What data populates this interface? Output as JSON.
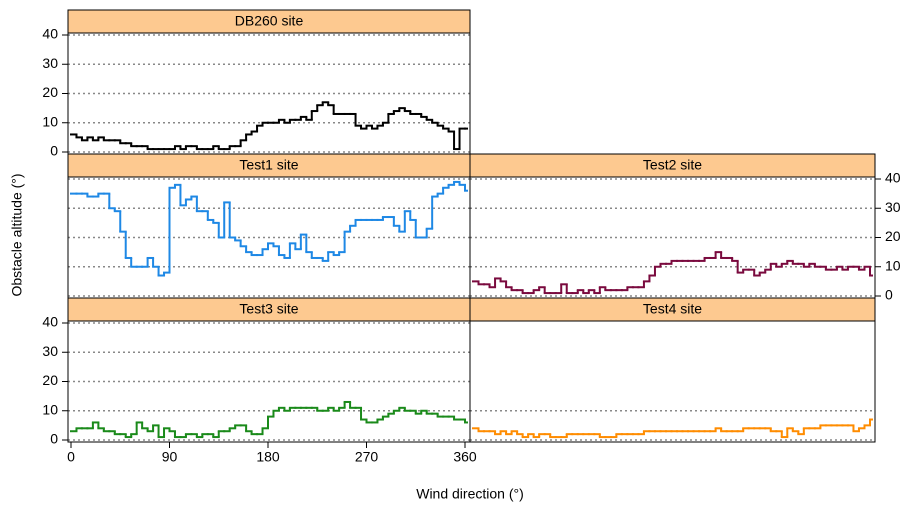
{
  "chart_data": [
    {
      "type": "line",
      "title": "DB260 site",
      "color": "#000000",
      "drawstyle": "steps-post",
      "x": [
        0,
        5,
        10,
        15,
        20,
        25,
        30,
        35,
        40,
        45,
        50,
        55,
        60,
        65,
        70,
        75,
        80,
        85,
        90,
        95,
        100,
        105,
        110,
        115,
        120,
        125,
        130,
        135,
        140,
        145,
        150,
        155,
        160,
        165,
        170,
        175,
        180,
        185,
        190,
        195,
        200,
        205,
        210,
        215,
        220,
        225,
        230,
        235,
        240,
        245,
        250,
        255,
        260,
        265,
        270,
        275,
        280,
        285,
        290,
        295,
        300,
        305,
        310,
        315,
        320,
        325,
        330,
        335,
        340,
        345,
        350,
        355,
        360
      ],
      "values": [
        6,
        5,
        4,
        5,
        4,
        5,
        4,
        4,
        4,
        3,
        3,
        2,
        2,
        2,
        1,
        1,
        1,
        1,
        1,
        2,
        1,
        2,
        2,
        1,
        1,
        1,
        2,
        1,
        1,
        2,
        2,
        4,
        6,
        7,
        9,
        10,
        10,
        10,
        11,
        10,
        11,
        11,
        12,
        11,
        14,
        16,
        17,
        16,
        13,
        13,
        13,
        13,
        9,
        8,
        9,
        8,
        9,
        10,
        13,
        14,
        15,
        14,
        13,
        13,
        12,
        11,
        10,
        9,
        8,
        7,
        1,
        8,
        8
      ],
      "xlim": [
        0,
        360
      ],
      "ylim": [
        0,
        40
      ],
      "yticks": [
        0,
        10,
        20,
        30,
        40
      ],
      "ytick_side": "left",
      "grid": true
    },
    {
      "type": "line",
      "title": "Test1 site",
      "color": "#1e88e5",
      "drawstyle": "steps-post",
      "x": [
        0,
        5,
        10,
        15,
        20,
        25,
        30,
        35,
        40,
        45,
        50,
        55,
        60,
        65,
        70,
        75,
        80,
        85,
        90,
        95,
        100,
        105,
        110,
        115,
        120,
        125,
        130,
        135,
        140,
        145,
        150,
        155,
        160,
        165,
        170,
        175,
        180,
        185,
        190,
        195,
        200,
        205,
        210,
        215,
        220,
        225,
        230,
        235,
        240,
        245,
        250,
        255,
        260,
        265,
        270,
        275,
        280,
        285,
        290,
        295,
        300,
        305,
        310,
        315,
        320,
        325,
        330,
        335,
        340,
        345,
        350,
        355,
        360
      ],
      "values": [
        35,
        35,
        35,
        34,
        34,
        35,
        35,
        30,
        29,
        22,
        13,
        10,
        10,
        10,
        13,
        10,
        7,
        8,
        37,
        38,
        31,
        33,
        34,
        29,
        29,
        26,
        25,
        20,
        32,
        20,
        19,
        17,
        15,
        14,
        14,
        16,
        18,
        17,
        14,
        13,
        18,
        16,
        21,
        15,
        13,
        13,
        12,
        15,
        14,
        15,
        22,
        24,
        26,
        26,
        26,
        26,
        26,
        27,
        27,
        24,
        22,
        29,
        26,
        20,
        20,
        23,
        34,
        35,
        37,
        38,
        39,
        38,
        36
      ],
      "xlim": [
        0,
        360
      ],
      "ylim": [
        0,
        40
      ],
      "yticks": [
        0,
        10,
        20,
        30,
        40
      ],
      "ytick_side": "none",
      "grid": true
    },
    {
      "type": "line",
      "title": "Test2 site",
      "color": "#7a0a3e",
      "drawstyle": "steps-post",
      "x": [
        0,
        5,
        10,
        15,
        20,
        25,
        30,
        35,
        40,
        45,
        50,
        55,
        60,
        65,
        70,
        75,
        80,
        85,
        90,
        95,
        100,
        105,
        110,
        115,
        120,
        125,
        130,
        135,
        140,
        145,
        150,
        155,
        160,
        165,
        170,
        175,
        180,
        185,
        190,
        195,
        200,
        205,
        210,
        215,
        220,
        225,
        230,
        235,
        240,
        245,
        250,
        255,
        260,
        265,
        270,
        275,
        280,
        285,
        290,
        295,
        300,
        305,
        310,
        315,
        320,
        325,
        330,
        335,
        340,
        345,
        350,
        355,
        360
      ],
      "values": [
        5,
        4,
        4,
        3,
        6,
        5,
        3,
        2,
        2,
        1,
        1,
        2,
        3,
        1,
        1,
        1,
        4,
        1,
        1,
        2,
        1,
        2,
        1,
        3,
        2,
        2,
        2,
        2,
        3,
        3,
        3,
        5,
        7,
        10,
        11,
        11,
        12,
        12,
        12,
        12,
        12,
        12,
        13,
        13,
        15,
        13,
        13,
        12,
        8,
        9,
        9,
        7,
        8,
        9,
        11,
        10,
        11,
        12,
        11,
        11,
        10,
        11,
        10,
        10,
        9,
        9,
        10,
        9,
        10,
        10,
        9,
        10,
        7
      ],
      "xlim": [
        0,
        360
      ],
      "ylim": [
        0,
        40
      ],
      "yticks": [
        0,
        10,
        20,
        30,
        40
      ],
      "ytick_side": "right",
      "grid": true
    },
    {
      "type": "line",
      "title": "Test3 site",
      "color": "#1a8a1a",
      "drawstyle": "steps-post",
      "x": [
        0,
        5,
        10,
        15,
        20,
        25,
        30,
        35,
        40,
        45,
        50,
        55,
        60,
        65,
        70,
        75,
        80,
        85,
        90,
        95,
        100,
        105,
        110,
        115,
        120,
        125,
        130,
        135,
        140,
        145,
        150,
        155,
        160,
        165,
        170,
        175,
        180,
        185,
        190,
        195,
        200,
        205,
        210,
        215,
        220,
        225,
        230,
        235,
        240,
        245,
        250,
        255,
        260,
        265,
        270,
        275,
        280,
        285,
        290,
        295,
        300,
        305,
        310,
        315,
        320,
        325,
        330,
        335,
        340,
        345,
        350,
        355,
        360
      ],
      "values": [
        3,
        4,
        4,
        4,
        6,
        4,
        3,
        3,
        2,
        2,
        1,
        2,
        6,
        4,
        3,
        5,
        1,
        4,
        3,
        1,
        1,
        2,
        2,
        1,
        2,
        2,
        1,
        3,
        3,
        4,
        5,
        5,
        3,
        2,
        2,
        4,
        8,
        10,
        11,
        10,
        11,
        11,
        11,
        11,
        11,
        10,
        10,
        11,
        10,
        11,
        13,
        11,
        11,
        7,
        6,
        6,
        7,
        8,
        9,
        10,
        11,
        10,
        10,
        9,
        10,
        9,
        9,
        8,
        8,
        8,
        7,
        7,
        6
      ],
      "xlim": [
        0,
        360
      ],
      "ylim": [
        0,
        40
      ],
      "yticks": [
        0,
        10,
        20,
        30,
        40
      ],
      "ytick_side": "left",
      "xticks": [
        0,
        90,
        180,
        270,
        360
      ],
      "grid": true
    },
    {
      "type": "line",
      "title": "Test4 site",
      "color": "#ff8c00",
      "drawstyle": "steps-post",
      "x": [
        0,
        5,
        10,
        15,
        20,
        25,
        30,
        35,
        40,
        45,
        50,
        55,
        60,
        65,
        70,
        75,
        80,
        85,
        90,
        95,
        100,
        105,
        110,
        115,
        120,
        125,
        130,
        135,
        140,
        145,
        150,
        155,
        160,
        165,
        170,
        175,
        180,
        185,
        190,
        195,
        200,
        205,
        210,
        215,
        220,
        225,
        230,
        235,
        240,
        245,
        250,
        255,
        260,
        265,
        270,
        275,
        280,
        285,
        290,
        295,
        300,
        305,
        310,
        315,
        320,
        325,
        330,
        335,
        340,
        345,
        350,
        355,
        360
      ],
      "values": [
        4,
        3,
        3,
        3,
        2,
        3,
        2,
        3,
        2,
        1,
        2,
        1,
        2,
        2,
        1,
        1,
        1,
        2,
        2,
        2,
        2,
        2,
        2,
        1,
        1,
        1,
        2,
        2,
        2,
        2,
        2,
        3,
        3,
        3,
        3,
        3,
        3,
        3,
        3,
        3,
        3,
        3,
        3,
        3,
        4,
        3,
        3,
        3,
        3,
        4,
        4,
        4,
        4,
        4,
        3,
        3,
        1,
        4,
        3,
        2,
        4,
        4,
        4,
        5,
        5,
        5,
        5,
        5,
        5,
        3,
        4,
        5,
        7
      ],
      "xlim": [
        0,
        360
      ],
      "ylim": [
        0,
        40
      ],
      "yticks": [
        0,
        10
      ],
      "ytick_side": "none",
      "grid": true
    }
  ],
  "xlabel": "Wind direction (°)",
  "ylabel": "Obstacle altitude (°)"
}
